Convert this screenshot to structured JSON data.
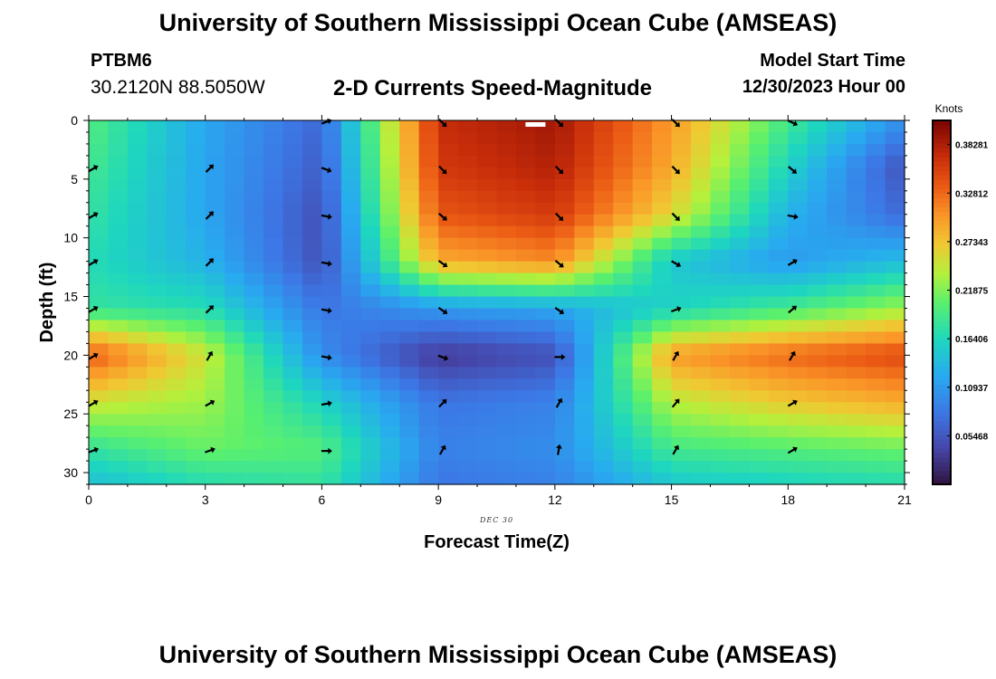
{
  "header": {
    "title": "University of Southern Mississippi Ocean Cube (AMSEAS)",
    "station_id": "PTBM6",
    "station_coords": "30.2120N  88.5050W",
    "subtitle": "2-D Currents Speed-Magnitude",
    "model_start_label": "Model Start Time",
    "model_start_value": "12/30/2023 Hour 00"
  },
  "footer": {
    "title": "University of Southern Mississippi Ocean Cube (AMSEAS)"
  },
  "chart_data": {
    "type": "heatmap",
    "title": "2-D Currents Speed-Magnitude",
    "xlabel": "Forecast Time(Z)",
    "ylabel": "Depth (ft)",
    "date_label": "DEC 30",
    "xlim": [
      0,
      21
    ],
    "ylim": [
      31,
      0
    ],
    "x_ticks": [
      0,
      3,
      6,
      9,
      12,
      15,
      18,
      21
    ],
    "y_ticks": [
      0,
      5,
      10,
      15,
      20,
      25,
      30
    ],
    "colorbar": {
      "unit": "Knots",
      "range": [
        0.0,
        0.41
      ],
      "tick_values": [
        0.05468,
        0.10937,
        0.16406,
        0.21875,
        0.27343,
        0.32812,
        0.38281
      ],
      "tick_labels": [
        "0.05468",
        "0.10937",
        "0.16406",
        "0.21875",
        "0.27343",
        "0.32812",
        "0.38281"
      ]
    },
    "time_nodes": [
      0,
      3,
      6,
      9,
      12,
      15,
      18,
      21
    ],
    "depth_nodes": [
      0,
      4,
      8,
      12,
      16,
      20,
      24,
      28,
      31
    ],
    "speed_knots": [
      [
        0.2,
        0.12,
        0.07,
        0.37,
        0.39,
        0.3,
        0.19,
        0.1
      ],
      [
        0.19,
        0.12,
        0.06,
        0.36,
        0.38,
        0.29,
        0.16,
        0.05
      ],
      [
        0.18,
        0.12,
        0.05,
        0.34,
        0.36,
        0.26,
        0.13,
        0.07
      ],
      [
        0.17,
        0.13,
        0.05,
        0.29,
        0.31,
        0.15,
        0.11,
        0.14
      ],
      [
        0.18,
        0.17,
        0.08,
        0.11,
        0.12,
        0.16,
        0.19,
        0.23
      ],
      [
        0.34,
        0.25,
        0.1,
        0.03,
        0.05,
        0.3,
        0.33,
        0.35
      ],
      [
        0.25,
        0.23,
        0.16,
        0.08,
        0.09,
        0.24,
        0.27,
        0.29
      ],
      [
        0.18,
        0.21,
        0.2,
        0.09,
        0.1,
        0.19,
        0.2,
        0.21
      ],
      [
        0.14,
        0.17,
        0.18,
        0.08,
        0.09,
        0.15,
        0.16,
        0.17
      ]
    ],
    "vectors": {
      "depths": [
        0,
        4,
        8,
        12,
        16,
        20,
        24,
        28
      ],
      "times": [
        0,
        3,
        6,
        9,
        12,
        15,
        18
      ],
      "direction_deg": [
        [
          null,
          null,
          70,
          135,
          135,
          135,
          115
        ],
        [
          60,
          45,
          110,
          135,
          135,
          135,
          130
        ],
        [
          60,
          45,
          100,
          130,
          135,
          135,
          100
        ],
        [
          60,
          45,
          100,
          125,
          130,
          120,
          60
        ],
        [
          60,
          45,
          100,
          125,
          125,
          70,
          50
        ],
        [
          60,
          30,
          100,
          110,
          90,
          30,
          30
        ],
        [
          60,
          60,
          80,
          45,
          30,
          40,
          60
        ],
        [
          70,
          70,
          90,
          30,
          10,
          30,
          60
        ]
      ]
    },
    "surface_marker": {
      "time": 11.5,
      "depth": 0
    }
  }
}
